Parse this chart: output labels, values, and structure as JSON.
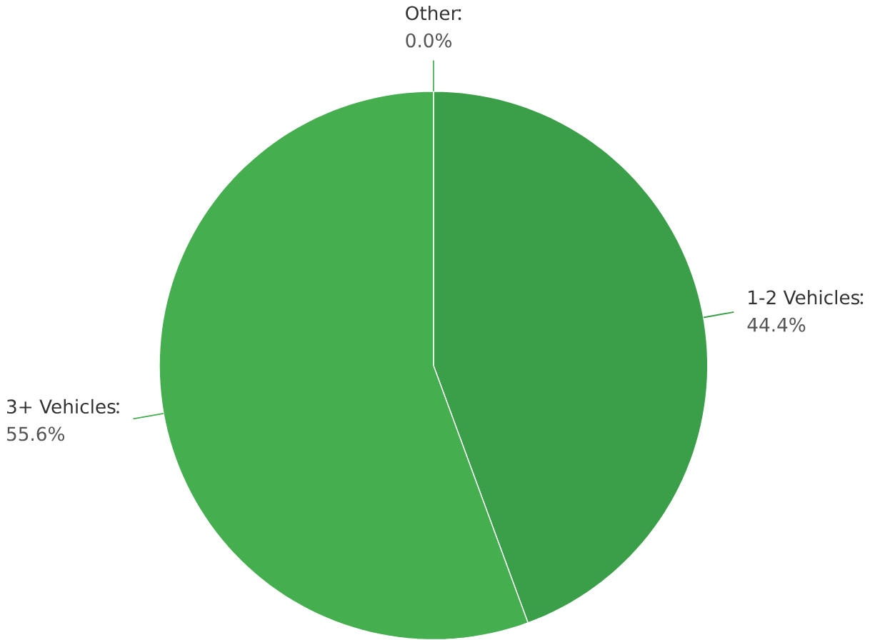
{
  "chart_data": {
    "type": "pie",
    "categories": [
      "1-2 Vehicles",
      "3+ Vehicles",
      "Other"
    ],
    "values": [
      44.4,
      55.6,
      0.0
    ],
    "value_labels": [
      "44.4%",
      "55.6%",
      "0.0%"
    ],
    "colors": [
      "#3a9f48",
      "#45ae4f",
      "#4cb85a"
    ]
  }
}
